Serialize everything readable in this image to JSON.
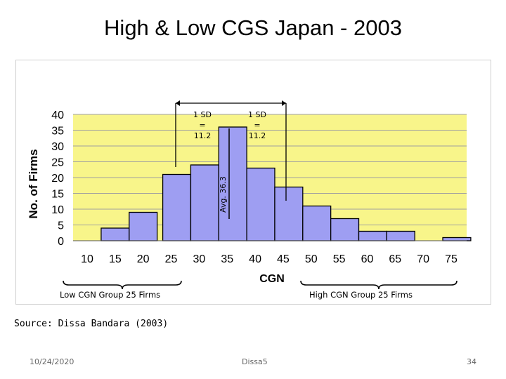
{
  "slide": {
    "title": "High & Low CGS Japan - 2003",
    "source": "Source: Dissa Bandara (2003)",
    "date": "10/24/2020",
    "author": "Dissa5",
    "page_number": "34"
  },
  "chart_data": {
    "type": "bar",
    "title": "",
    "xlabel": "CGN",
    "ylabel": "No. of Firms",
    "x_ticks": [
      10,
      15,
      20,
      25,
      30,
      35,
      40,
      45,
      50,
      55,
      60,
      65,
      70,
      75
    ],
    "y_ticks": [
      0,
      5,
      10,
      15,
      20,
      25,
      30,
      35,
      40
    ],
    "ylim": [
      0,
      40
    ],
    "xlim": [
      10,
      75
    ],
    "grid": true,
    "bins": [
      {
        "x0": 12.5,
        "x1": 17.5,
        "value": 4
      },
      {
        "x0": 17.5,
        "x1": 22.5,
        "value": 9
      },
      {
        "x0": 23.5,
        "x1": 28.5,
        "value": 21
      },
      {
        "x0": 28.5,
        "x1": 33.5,
        "value": 24
      },
      {
        "x0": 33.5,
        "x1": 38.5,
        "value": 36
      },
      {
        "x0": 38.5,
        "x1": 43.5,
        "value": 23
      },
      {
        "x0": 43.5,
        "x1": 48.5,
        "value": 17
      },
      {
        "x0": 48.5,
        "x1": 53.5,
        "value": 11
      },
      {
        "x0": 53.5,
        "x1": 58.5,
        "value": 7
      },
      {
        "x0": 58.5,
        "x1": 63.5,
        "value": 3
      },
      {
        "x0": 63.5,
        "x1": 68.5,
        "value": 3
      },
      {
        "x0": 73.5,
        "x1": 78.5,
        "value": 1
      }
    ],
    "annotations": {
      "average_label": "Avg. 36.3",
      "average_value": 36.3,
      "sd_left": [
        "1 SD",
        "=",
        "11.2"
      ],
      "sd_right": [
        "1 SD",
        "=",
        "11.2"
      ],
      "low_group": "Low CGN Group 25 Firms",
      "high_group": "High CGN Group 25 Firms"
    },
    "colors": {
      "plot_background": "#f8f58a",
      "bar_fill": "#9e9ef2",
      "bar_stroke": "#000000",
      "grid": "#a0a0a0"
    }
  }
}
